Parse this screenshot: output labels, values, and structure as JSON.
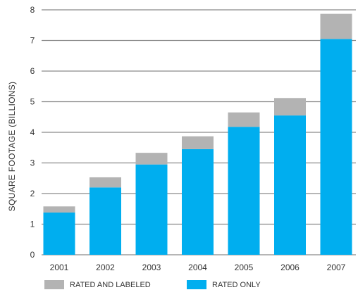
{
  "chart_data": {
    "type": "bar",
    "stacked": true,
    "title": "",
    "xlabel": "",
    "ylabel": "SQUARE FOOTAGE (BILLIONS)",
    "ylim": [
      0,
      8
    ],
    "yticks": [
      0,
      1,
      2,
      3,
      4,
      5,
      6,
      7,
      8
    ],
    "categories": [
      "2001",
      "2002",
      "2003",
      "2004",
      "2005",
      "2006",
      "2007"
    ],
    "series": [
      {
        "name": "RATED ONLY",
        "color": "#00aeef",
        "values": [
          1.38,
          2.2,
          2.95,
          3.45,
          4.18,
          4.55,
          7.05
        ]
      },
      {
        "name": "RATED AND LABELED",
        "color": "#b3b3b3",
        "values": [
          0.2,
          0.33,
          0.38,
          0.42,
          0.47,
          0.57,
          0.82
        ]
      }
    ],
    "grid": true,
    "legend_position": "bottom"
  }
}
